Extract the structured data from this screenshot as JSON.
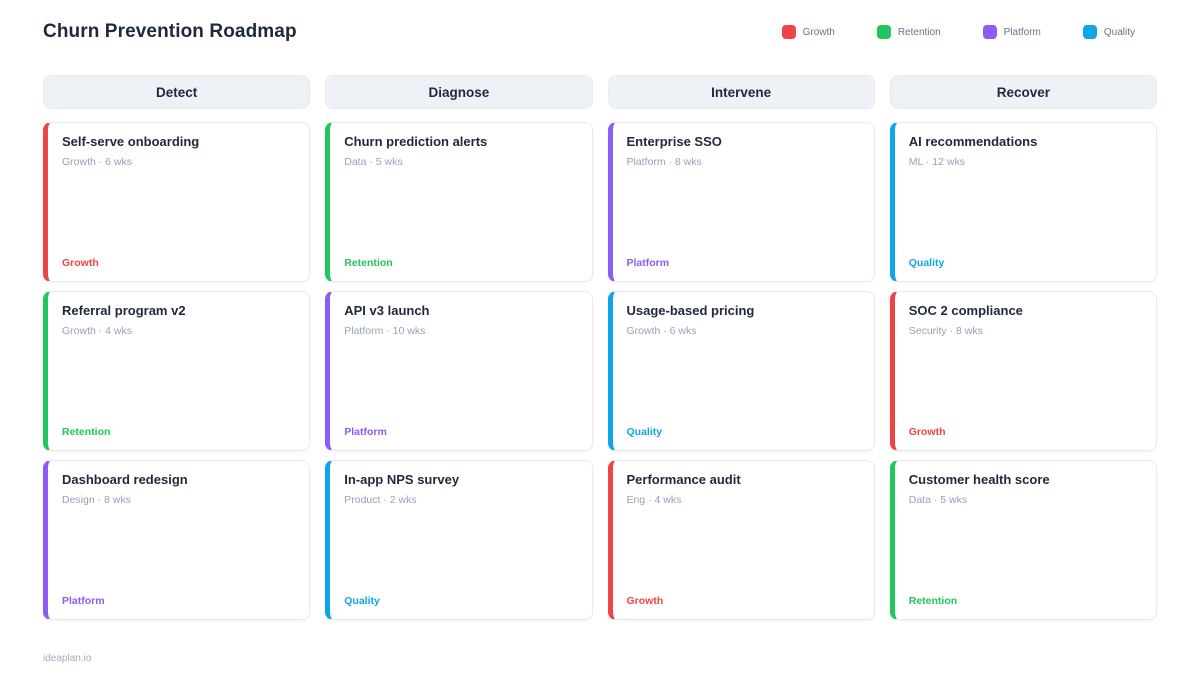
{
  "page": {
    "title": "Churn Prevention Roadmap",
    "footer": "ideaplan.io"
  },
  "legend": {
    "items": [
      {
        "label": "Growth",
        "color": "#ef4444"
      },
      {
        "label": "Retention",
        "color": "#22c55e"
      },
      {
        "label": "Platform",
        "color": "#8b5cf6"
      },
      {
        "label": "Quality",
        "color": "#0ea5e9"
      }
    ]
  },
  "board": {
    "columns": [
      {
        "header": "Detect",
        "cards": [
          {
            "title": "Self-serve onboarding",
            "meta": "Growth · 6 wks",
            "tag": "Growth",
            "color": "#ef4444"
          },
          {
            "title": "Referral program v2",
            "meta": "Growth · 4 wks",
            "tag": "Retention",
            "color": "#22c55e"
          },
          {
            "title": "Dashboard redesign",
            "meta": "Design · 8 wks",
            "tag": "Platform",
            "color": "#8b5cf6"
          }
        ]
      },
      {
        "header": "Diagnose",
        "cards": [
          {
            "title": "Churn prediction alerts",
            "meta": "Data · 5 wks",
            "tag": "Retention",
            "color": "#22c55e"
          },
          {
            "title": "API v3 launch",
            "meta": "Platform · 10 wks",
            "tag": "Platform",
            "color": "#8b5cf6"
          },
          {
            "title": "In-app NPS survey",
            "meta": "Product · 2 wks",
            "tag": "Quality",
            "color": "#0ea5e9"
          }
        ]
      },
      {
        "header": "Intervene",
        "cards": [
          {
            "title": "Enterprise SSO",
            "meta": "Platform · 8 wks",
            "tag": "Platform",
            "color": "#8b5cf6"
          },
          {
            "title": "Usage-based pricing",
            "meta": "Growth · 6 wks",
            "tag": "Quality",
            "color": "#0ea5e9"
          },
          {
            "title": "Performance audit",
            "meta": "Eng · 4 wks",
            "tag": "Growth",
            "color": "#ef4444"
          }
        ]
      },
      {
        "header": "Recover",
        "cards": [
          {
            "title": "AI recommendations",
            "meta": "ML · 12 wks",
            "tag": "Quality",
            "color": "#0ea5e9"
          },
          {
            "title": "SOC 2 compliance",
            "meta": "Security · 8 wks",
            "tag": "Growth",
            "color": "#ef4444"
          },
          {
            "title": "Customer health score",
            "meta": "Data · 5 wks",
            "tag": "Retention",
            "color": "#22c55e"
          }
        ]
      }
    ]
  }
}
